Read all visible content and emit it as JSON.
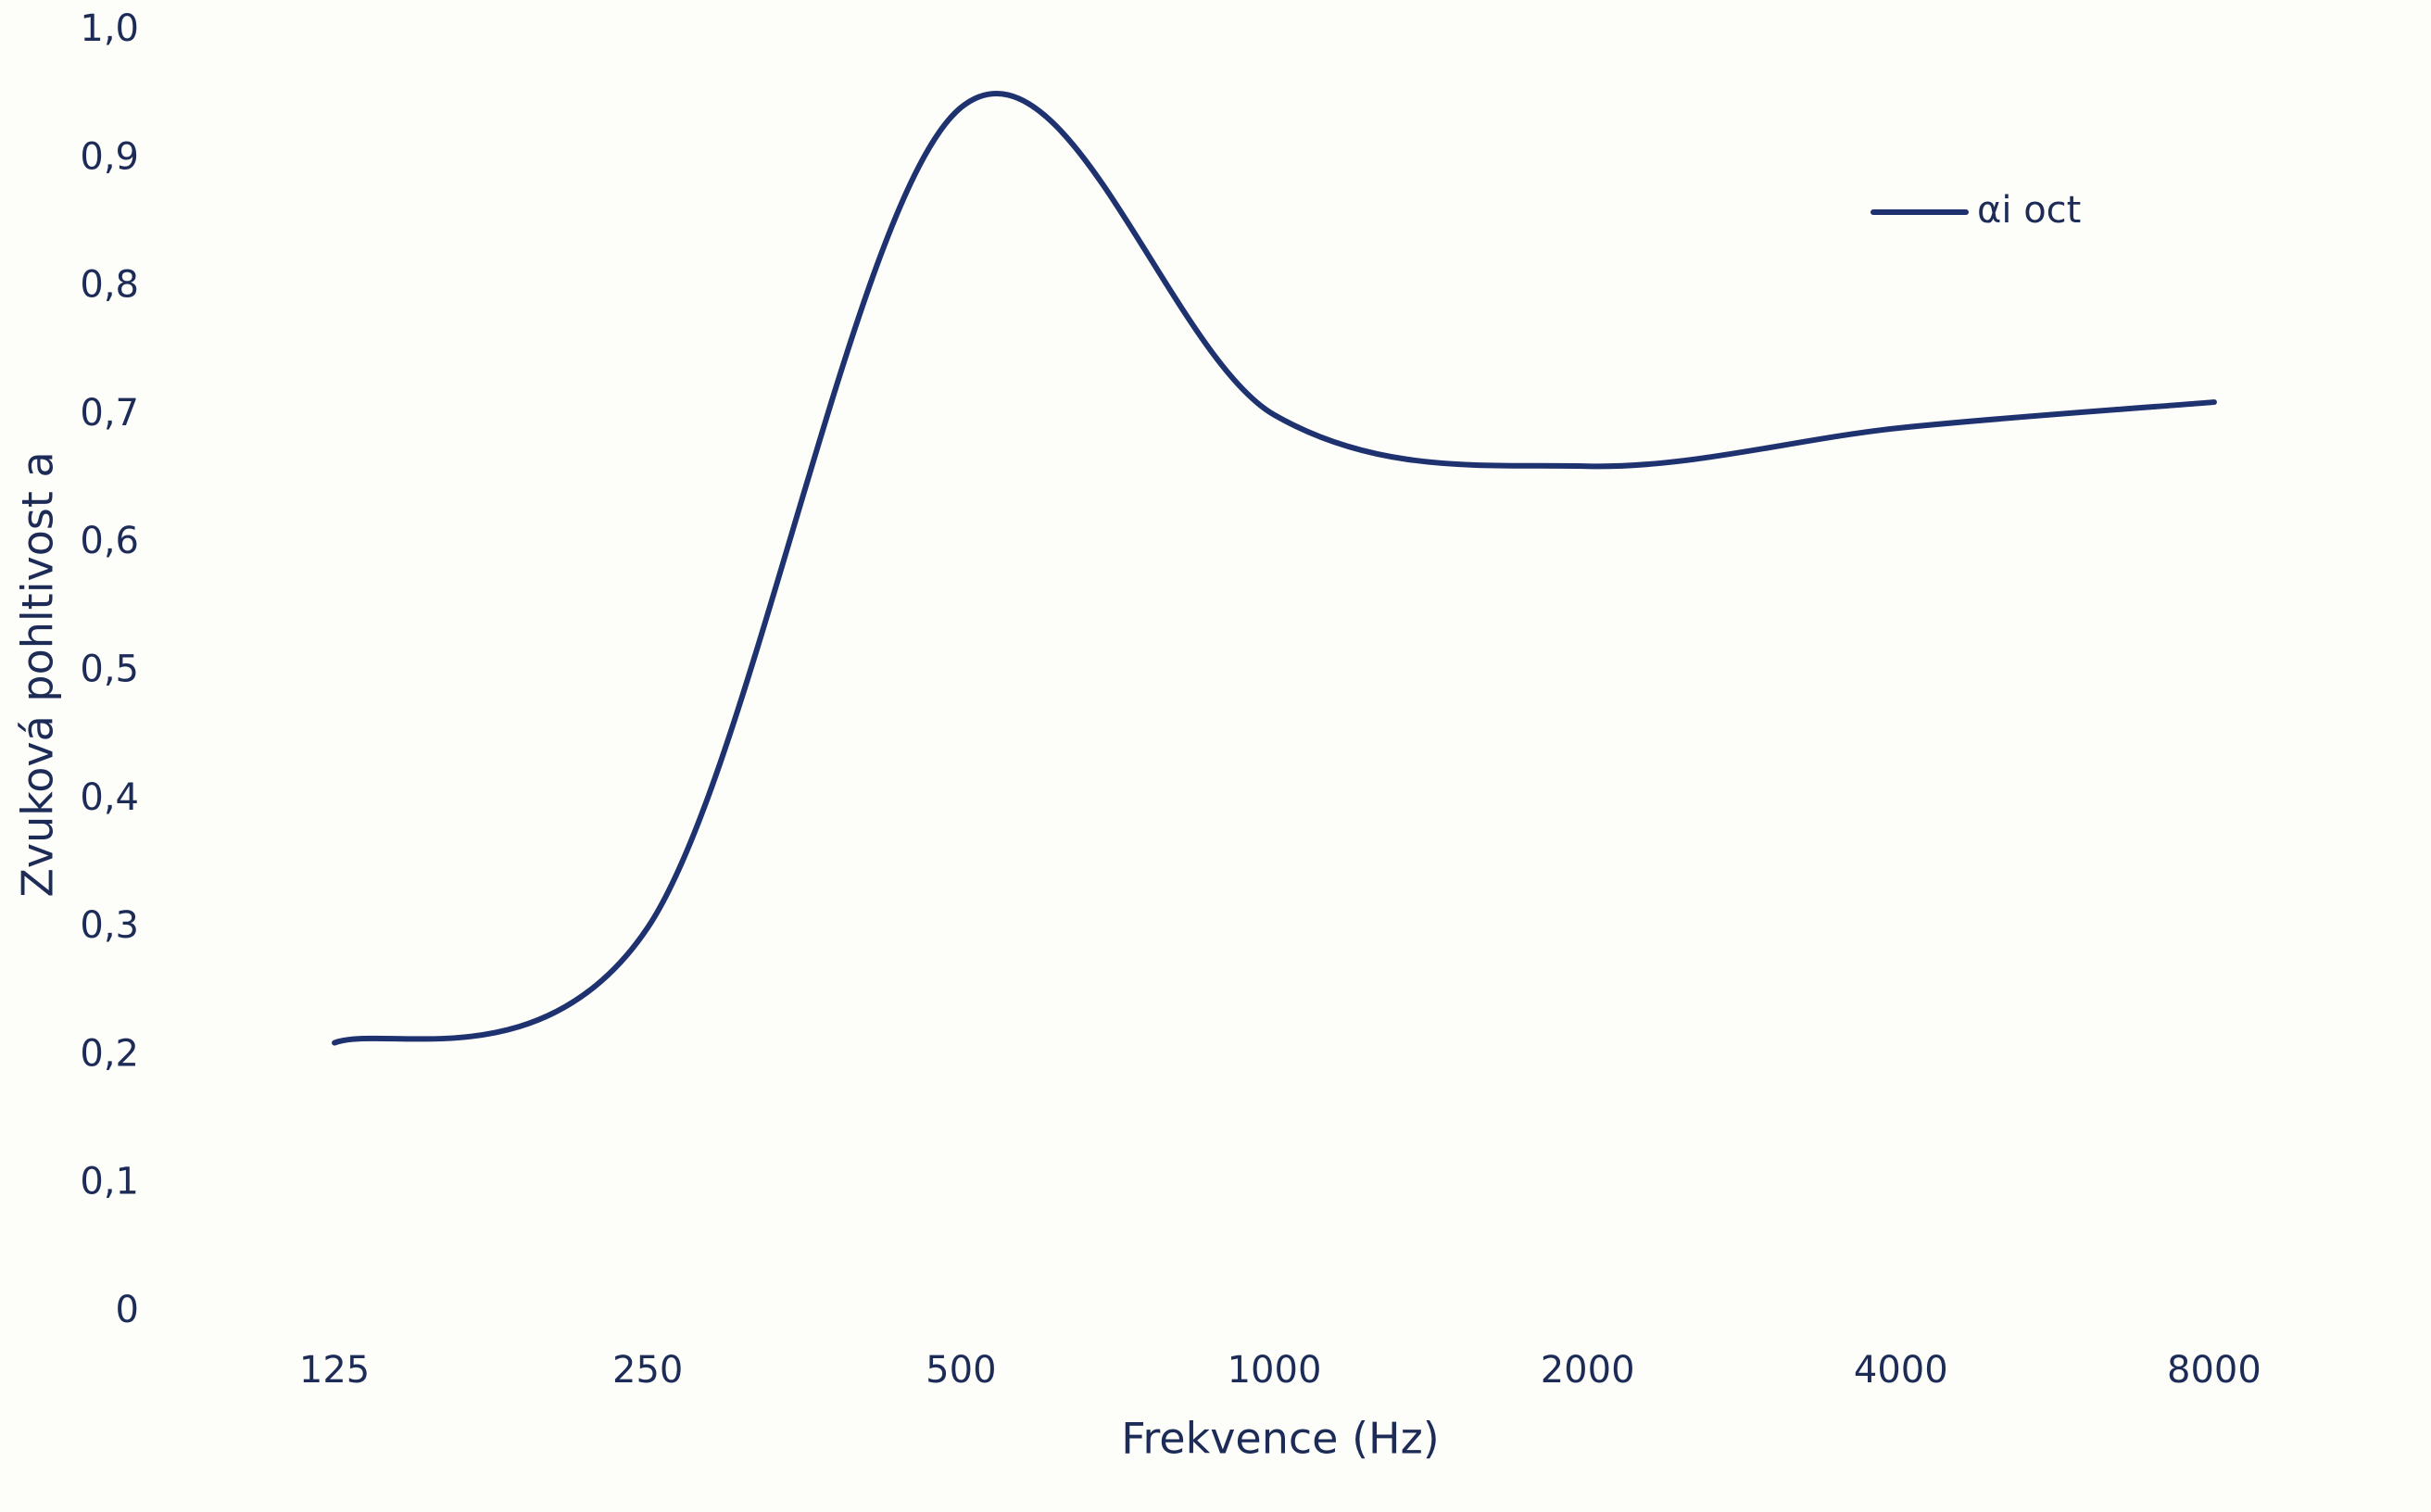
{
  "chart_data": {
    "type": "line",
    "categories": [
      "125",
      "250",
      "500",
      "1000",
      "2000",
      "4000",
      "8000"
    ],
    "series": [
      {
        "name": "αi oct",
        "color": "#1f3270",
        "values": [
          0.21,
          0.3,
          0.94,
          0.7,
          0.66,
          0.69,
          0.71
        ]
      }
    ],
    "ylim": [
      0,
      1.0
    ],
    "yticks": [
      0,
      {
        "value": 0.1,
        "label": "0,1"
      },
      {
        "value": 0.2,
        "label": "0,2"
      },
      {
        "value": 0.3,
        "label": "0,3"
      },
      {
        "value": 0.4,
        "label": "0,4"
      },
      {
        "value": 0.5,
        "label": "0,5"
      },
      {
        "value": 0.6,
        "label": "0,6"
      },
      {
        "value": 0.7,
        "label": "0,7"
      },
      {
        "value": 0.8,
        "label": "0,8"
      },
      {
        "value": 0.9,
        "label": "0,9"
      },
      {
        "value": 1.0,
        "label": "1,0"
      }
    ],
    "x_label": "Frekvence (Hz)",
    "y_label": "Zvuková pohltivost a",
    "smooth": true,
    "grid": false,
    "legend": "upper right"
  }
}
